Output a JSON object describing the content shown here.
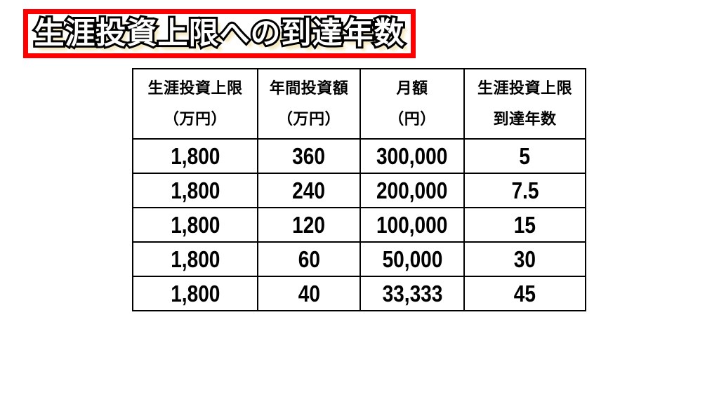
{
  "colors": {
    "accent-red": "#ff0000",
    "glow": "#f5eac2",
    "ink": "#000000",
    "bg": "#ffffff"
  },
  "title": {
    "text": "生涯投資上限への到達年数"
  },
  "table": {
    "columns": [
      {
        "line1": "生涯投資上限",
        "line2": "（万円）"
      },
      {
        "line1": "年間投資額",
        "line2": "（万円）"
      },
      {
        "line1": "月額",
        "line2": "（円）"
      },
      {
        "line1": "生涯投資上限",
        "line2": "到達年数"
      }
    ],
    "rows": [
      [
        "1,800",
        "360",
        "300,000",
        "5"
      ],
      [
        "1,800",
        "240",
        "200,000",
        "7.5"
      ],
      [
        "1,800",
        "120",
        "100,000",
        "15"
      ],
      [
        "1,800",
        "60",
        "50,000",
        "30"
      ],
      [
        "1,800",
        "40",
        "33,333",
        "45"
      ]
    ]
  }
}
